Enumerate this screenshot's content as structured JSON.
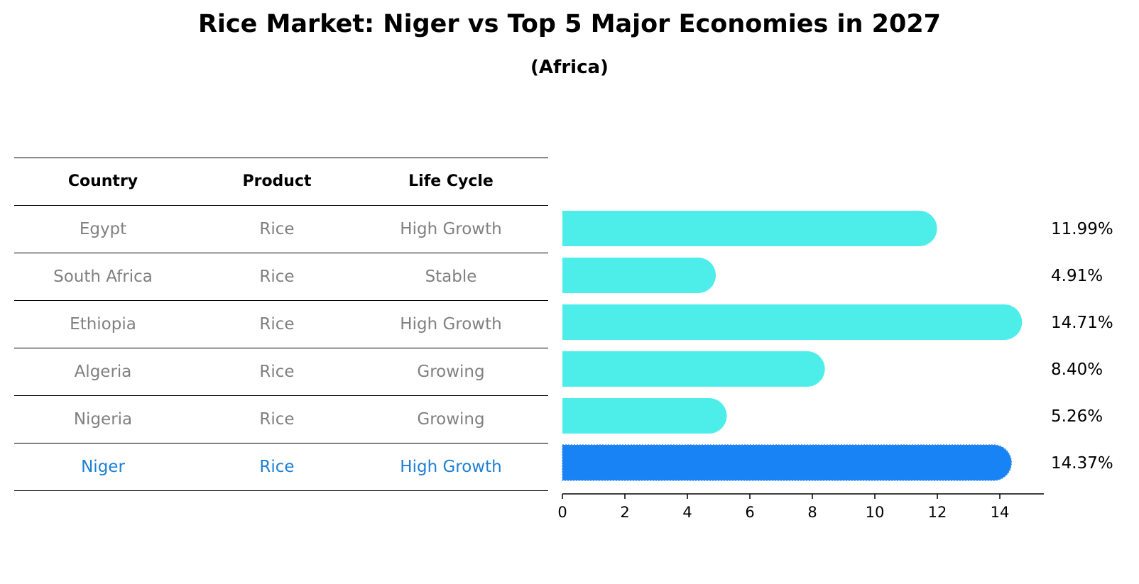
{
  "title": "Rice Market: Niger vs Top 5 Major Economies in 2027",
  "subtitle": "(Africa)",
  "table": {
    "headers": [
      "Country",
      "Product",
      "Life Cycle"
    ],
    "rows": [
      [
        "Egypt",
        "Rice",
        "High Growth"
      ],
      [
        "South Africa",
        "Rice",
        "Stable"
      ],
      [
        "Ethiopia",
        "Rice",
        "High Growth"
      ],
      [
        "Algeria",
        "Rice",
        "Growing"
      ],
      [
        "Nigeria",
        "Rice",
        "Growing"
      ],
      [
        "Niger",
        "Rice",
        "High Growth"
      ]
    ],
    "highlight_index": 5
  },
  "colors": {
    "bar": "#4DEEEA",
    "highlight_bar": "#1883F4",
    "highlight_text": "#1E7FD3",
    "muted_text": "#808080"
  },
  "chart_data": {
    "type": "bar",
    "orientation": "horizontal",
    "categories": [
      "Egypt",
      "South Africa",
      "Ethiopia",
      "Algeria",
      "Nigeria",
      "Niger"
    ],
    "values": [
      11.99,
      4.91,
      14.71,
      8.4,
      5.26,
      14.37
    ],
    "value_labels": [
      "11.99%",
      "4.91%",
      "14.71%",
      "8.40%",
      "5.26%",
      "14.37%"
    ],
    "highlight": "Niger",
    "xlim": [
      0,
      15.5
    ],
    "xticks": [
      0,
      2,
      4,
      6,
      8,
      10,
      12,
      14
    ],
    "grid": false
  }
}
